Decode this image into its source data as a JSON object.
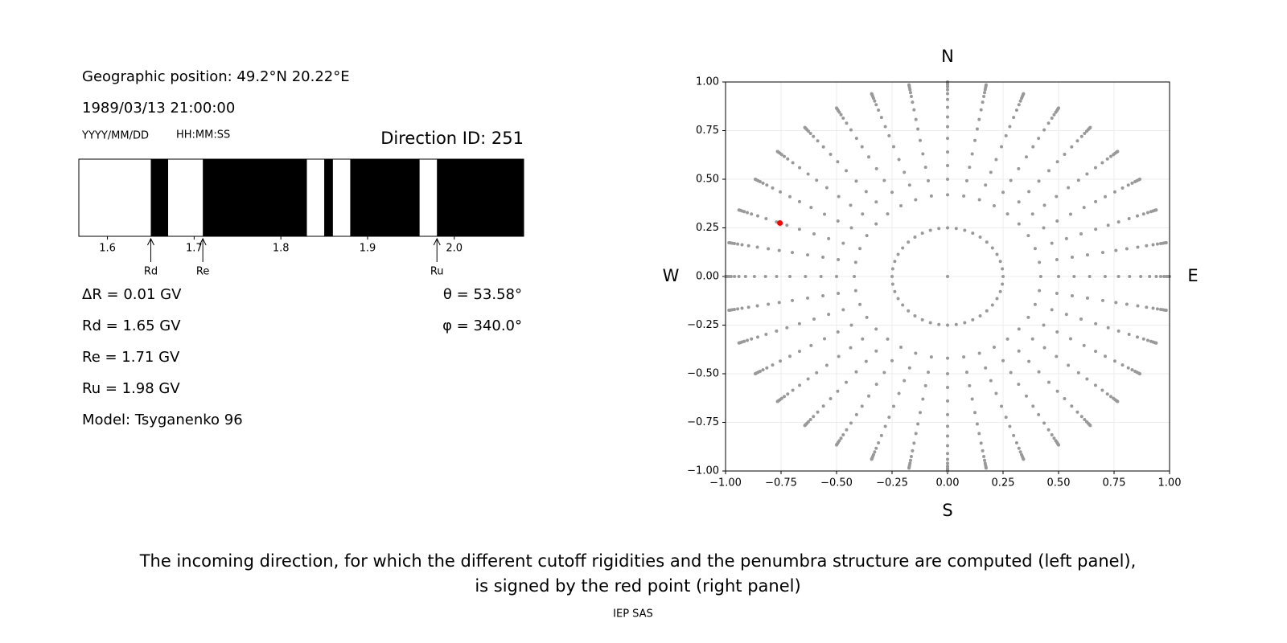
{
  "left_panel": {
    "position": "Geographic position: 49.2°N 20.22°E",
    "datetime": "1989/03/13 21:00:00",
    "date_format": "YYYY/MM/DD",
    "time_format": "HH:MM:SS",
    "direction_id": "Direction ID: 251",
    "lines_left": [
      "ΔR = 0.01 GV",
      "Rd = 1.65 GV",
      "Re = 1.71 GV",
      "Ru = 1.98 GV",
      "Model: Tsyganenko 96"
    ],
    "lines_right": [
      "θ = 53.58°",
      "φ = 340.0°"
    ]
  },
  "chart_data": [
    {
      "type": "penumbra",
      "xlim": [
        1.567,
        2.08
      ],
      "xticks": [
        1.6,
        1.7,
        1.8,
        1.9,
        {
          "value": 2,
          "label": "2.0"
        }
      ],
      "forbidden_bands": [
        [
          1.65,
          1.67
        ],
        [
          1.71,
          1.83
        ],
        [
          1.85,
          1.86
        ],
        [
          1.88,
          1.96
        ],
        [
          1.98,
          2.08
        ]
      ],
      "band_color": "#000000",
      "cutoffs": [
        {
          "label": "Rd",
          "value": 1.65
        },
        {
          "label": "Re",
          "value": 1.71
        },
        {
          "label": "Ru",
          "value": 1.98
        }
      ]
    },
    {
      "type": "polar-scatter",
      "xlim": [
        -1,
        1
      ],
      "ylim": [
        -1,
        1
      ],
      "xticks": [
        {
          "value": -1,
          "label": "−1.00"
        },
        {
          "value": -0.75,
          "label": "−0.75"
        },
        {
          "value": -0.5,
          "label": "−0.50"
        },
        {
          "value": -0.25,
          "label": "−0.25"
        },
        {
          "value": 0,
          "label": "0.00"
        },
        {
          "value": 0.25,
          "label": "0.25"
        },
        {
          "value": 0.5,
          "label": "0.50"
        },
        {
          "value": 0.75,
          "label": "0.75"
        },
        {
          "value": 1,
          "label": "1.00"
        }
      ],
      "yticks": [
        {
          "value": -1,
          "label": "−1.00"
        },
        {
          "value": -0.75,
          "label": "−0.75"
        },
        {
          "value": -0.5,
          "label": "−0.50"
        },
        {
          "value": -0.25,
          "label": "−0.25"
        },
        {
          "value": 0,
          "label": "0.00"
        },
        {
          "value": 0.25,
          "label": "0.25"
        },
        {
          "value": 0.5,
          "label": "0.50"
        },
        {
          "value": 0.75,
          "label": "0.75"
        },
        {
          "value": 1,
          "label": "1.00"
        }
      ],
      "grid": true,
      "point_color": "#999999",
      "rings": [
        {
          "r": 0,
          "az": [
            0
          ]
        },
        {
          "r": 0.25,
          "az": [
            0,
            9,
            18,
            27,
            36,
            45,
            54,
            63,
            72,
            81,
            90,
            99,
            108,
            117,
            126,
            135,
            144,
            153,
            162,
            171,
            180,
            189,
            198,
            207,
            216,
            225,
            234,
            243,
            252,
            261,
            270,
            279,
            288,
            297,
            306,
            315,
            324,
            333,
            342,
            351
          ]
        }
      ],
      "spokes": {
        "az": [
          0,
          10,
          20,
          30,
          40,
          50,
          60,
          70,
          80,
          90,
          100,
          110,
          120,
          130,
          140,
          150,
          160,
          170,
          180,
          190,
          200,
          210,
          220,
          230,
          240,
          250,
          260,
          270,
          280,
          290,
          300,
          310,
          320,
          330,
          340,
          350
        ],
        "r": [
          0.42,
          0.5,
          0.57,
          0.64,
          0.71,
          0.77,
          0.82,
          0.87,
          0.91,
          0.94,
          0.96,
          0.975,
          0.985,
          0.993,
          0.998,
          1
        ]
      },
      "highlight": {
        "x": -0.755,
        "y": 0.275,
        "color": "#ff0000"
      },
      "compass": [
        "N",
        "E",
        "S",
        "W"
      ]
    }
  ],
  "caption": {
    "lines": [
      "The incoming direction, for which the different cutoff rigidities and the penumbra structure are computed (left panel),",
      "is signed by the red point (right panel)"
    ],
    "footer": "IEP SAS"
  }
}
